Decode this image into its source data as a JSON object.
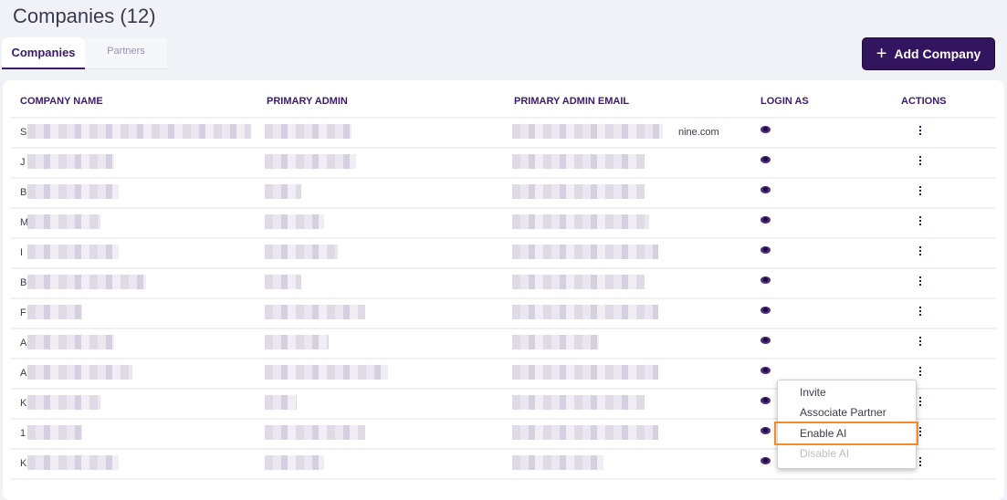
{
  "page": {
    "title": "Companies (12)"
  },
  "tabs": [
    {
      "label": "Companies",
      "active": true
    },
    {
      "label": "Partners",
      "active": false
    }
  ],
  "toolbar": {
    "add_label": "Add Company",
    "add_icon": "plus-icon"
  },
  "table": {
    "headers": [
      "COMPANY NAME",
      "PRIMARY ADMIN",
      "PRIMARY ADMIN EMAIL",
      "LOGIN AS",
      "ACTIONS"
    ],
    "rows": [
      {
        "name": "S",
        "email_tail": "nine.com"
      },
      {
        "name": "J",
        "email_tail": ""
      },
      {
        "name": "B",
        "email_tail": ""
      },
      {
        "name": "M",
        "email_tail": ""
      },
      {
        "name": "I",
        "email_tail": ""
      },
      {
        "name": "B",
        "email_tail": ""
      },
      {
        "name": "F",
        "email_tail": ""
      },
      {
        "name": "A",
        "email_tail": ""
      },
      {
        "name": "A",
        "email_tail": ""
      },
      {
        "name": "K",
        "email_tail": ""
      },
      {
        "name": "1",
        "email_tail": ""
      },
      {
        "name": "K",
        "email_tail": ""
      }
    ]
  },
  "menu": {
    "items": [
      {
        "label": "Invite",
        "state": "normal"
      },
      {
        "label": "Associate Partner",
        "state": "normal"
      },
      {
        "label": "Enable AI",
        "state": "highlighted"
      },
      {
        "label": "Disable AI",
        "state": "disabled"
      }
    ],
    "highlight_color": "#f58a2a"
  },
  "colors": {
    "accent": "#33145e",
    "background": "#f1f2f7"
  }
}
